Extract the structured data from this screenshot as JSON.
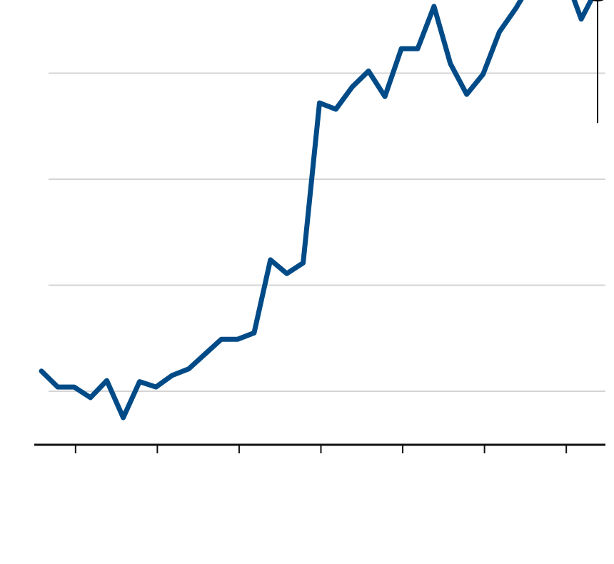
{
  "chart_data": {
    "type": "line",
    "title": "",
    "xlabel": "",
    "ylabel": "",
    "x": [
      0,
      1,
      2,
      3,
      4,
      5,
      6,
      7,
      8,
      9,
      10,
      11,
      12,
      13,
      14,
      15,
      16,
      17,
      18,
      19,
      20,
      21,
      22,
      23,
      24,
      25,
      26,
      27,
      28,
      29,
      30,
      31,
      32,
      33,
      34
    ],
    "series": [
      {
        "color": "#004b87",
        "values": [
          0.19,
          0.04,
          0.04,
          -0.06,
          0.1,
          -0.25,
          0.09,
          0.04,
          0.15,
          0.21,
          0.35,
          0.49,
          0.49,
          0.55,
          1.24,
          1.11,
          1.21,
          2.72,
          2.66,
          2.87,
          3.02,
          2.78,
          3.23,
          3.23,
          3.63,
          3.09,
          2.8,
          2.99,
          3.39,
          3.61,
          3.87,
          3.87,
          3.93,
          3.51,
          3.81
        ]
      }
    ],
    "xlim": [
      -0.2,
      34.2
    ],
    "ylim": [
      -0.5,
      4.0
    ],
    "gridlines_y": [
      0,
      1,
      2,
      3,
      4
    ],
    "x_ticks": [
      2,
      7,
      12,
      17,
      22,
      27,
      32
    ],
    "grid": true,
    "legend": "none",
    "annotation": {
      "point_index": 34,
      "marker": "circle-with-leader-line"
    }
  }
}
